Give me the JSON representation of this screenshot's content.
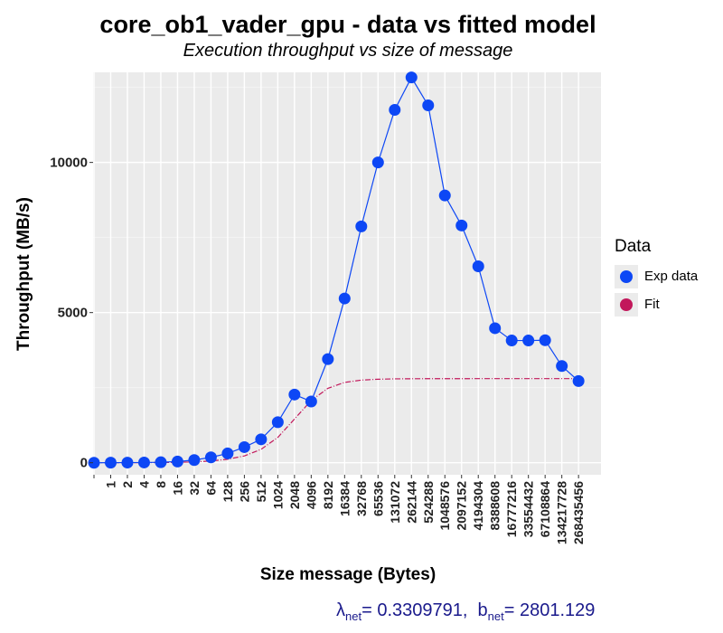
{
  "chart_data": {
    "type": "line",
    "title": "core_ob1_vader_gpu - data vs fitted model",
    "subtitle": "Execution throughput vs size of message",
    "xlabel": "Size message (Bytes)",
    "ylabel": "Throughput (MB/s)",
    "ylim": [
      -400,
      13000
    ],
    "yticks": [
      0,
      5000,
      10000
    ],
    "yticklabels": [
      "0",
      "5000",
      "10000"
    ],
    "categories": [
      "",
      "1",
      "2",
      "4",
      "8",
      "16",
      "32",
      "64",
      "128",
      "256",
      "512",
      "1024",
      "2048",
      "4096",
      "8192",
      "16384",
      "32768",
      "65536",
      "131072",
      "262144",
      "524288",
      "1048576",
      "2097152",
      "4194304",
      "8388608",
      "16777216",
      "33554432",
      "67108864",
      "134217728",
      "268435456"
    ],
    "grid": true,
    "legend_position": "right",
    "series": [
      {
        "name": "Exp data",
        "color": "#0d47f5",
        "values": [
          0,
          2,
          4,
          8,
          16,
          40,
          90,
          180,
          310,
          520,
          780,
          1350,
          2270,
          2040,
          3450,
          5470,
          7870,
          10000,
          11750,
          12830,
          11900,
          8900,
          7900,
          6540,
          4480,
          4070,
          4070,
          4080,
          3220,
          2720
        ]
      },
      {
        "name": "Fit",
        "color": "#c2185b",
        "values": [
          0,
          1,
          2,
          4,
          7,
          14,
          29,
          58,
          116,
          227,
          445,
          842,
          1456,
          2073,
          2478,
          2676,
          2752,
          2781,
          2793,
          2797,
          2799,
          2800,
          2800,
          2801,
          2801,
          2801,
          2801,
          2801,
          2801,
          2801
        ]
      }
    ]
  },
  "legend": {
    "title": "Data",
    "items": [
      "Exp data",
      "Fit"
    ]
  },
  "footer": {
    "lambda_symbol": "λ",
    "lambda_sub": "net",
    "lambda_value": "= 0.3309791,",
    "b_symbol": "b",
    "b_sub": "net",
    "b_value": "= 2801.129"
  }
}
